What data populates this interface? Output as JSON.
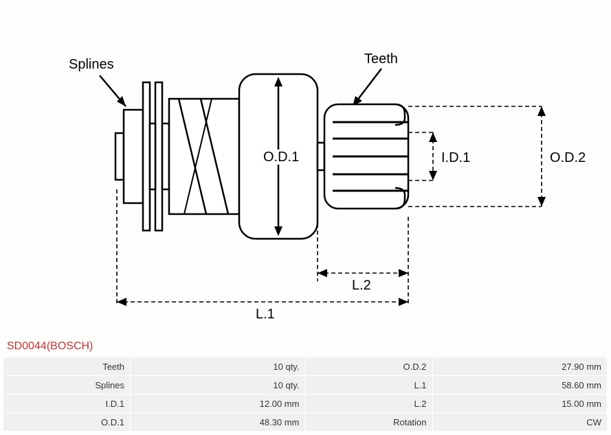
{
  "diagram": {
    "type": "engineering-diagram",
    "labels": {
      "splines": "Splines",
      "teeth": "Teeth",
      "od1": "O.D.1",
      "od2": "O.D.2",
      "id1": "I.D.1",
      "l1": "L.1",
      "l2": "L.2"
    },
    "stroke_color": "#000000",
    "stroke_width": 2.5,
    "dash_pattern": "6,4",
    "background_color": "#fdfdfb"
  },
  "title": "SD0044(BOSCH)",
  "title_color": "#c23335",
  "specs": {
    "columns": [
      "label",
      "value",
      "label",
      "value"
    ],
    "rows": [
      [
        "Teeth",
        "10 qty.",
        "O.D.2",
        "27.90 mm"
      ],
      [
        "Splines",
        "10 qty.",
        "L.1",
        "58.60 mm"
      ],
      [
        "I.D.1",
        "12.00 mm",
        "L.2",
        "15.00 mm"
      ],
      [
        "O.D.1",
        "48.30 mm",
        "Rotation",
        "CW"
      ]
    ],
    "cell_bg": "#f0f0f0",
    "font_size": 13,
    "text_color": "#333333"
  }
}
